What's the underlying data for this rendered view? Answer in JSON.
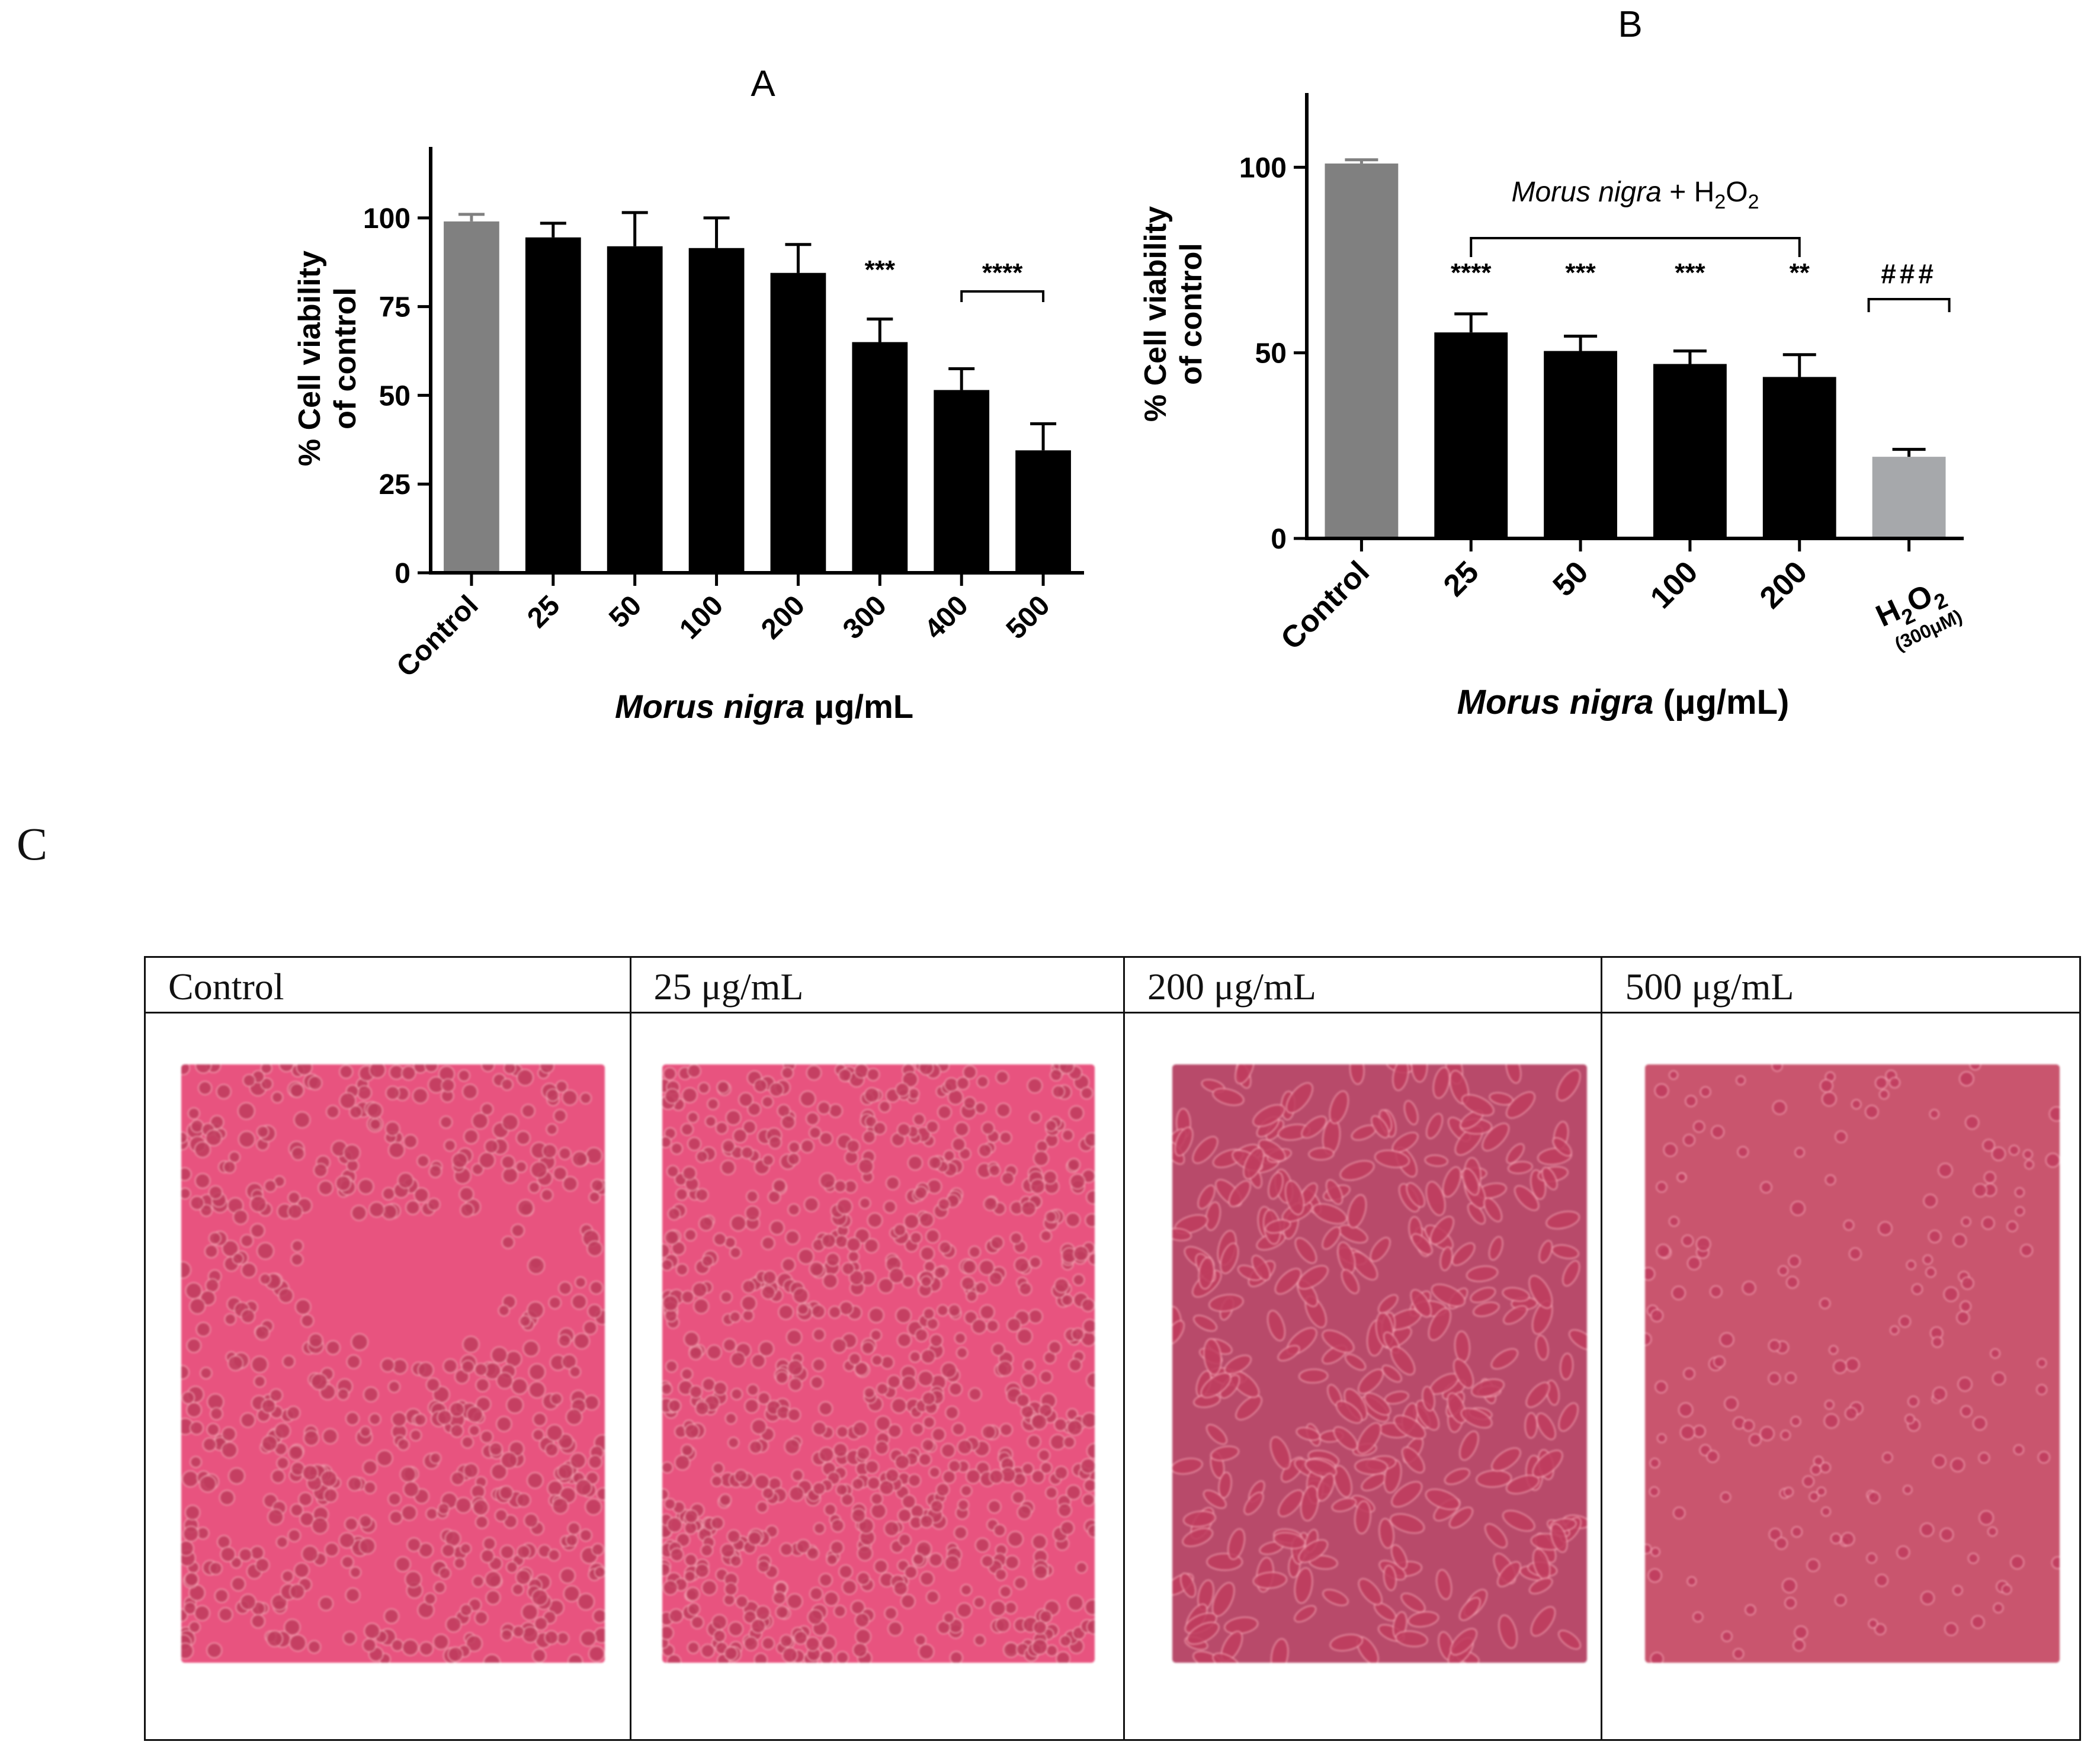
{
  "chart_data": [
    {
      "panel": "A",
      "type": "bar",
      "title": "A",
      "ylabel_lines": [
        "% Cell viability",
        "of control"
      ],
      "xlabel_italic": "Morus nigra",
      "xlabel_rest": " μg/mL",
      "categories": [
        "Control",
        "25",
        "50",
        "100",
        "200",
        "300",
        "400",
        "500"
      ],
      "values": [
        99,
        94.5,
        92,
        91.5,
        84.5,
        65,
        51.5,
        34.5
      ],
      "errors": [
        2,
        4,
        9.5,
        8.5,
        8,
        6.5,
        6,
        7.5
      ],
      "bar_colors": [
        "#808080",
        "#000000",
        "#000000",
        "#000000",
        "#000000",
        "#000000",
        "#000000",
        "#000000"
      ],
      "ylim": [
        0,
        120
      ],
      "yticks": [
        "0",
        "25",
        "50",
        "75",
        "100"
      ],
      "annotations": [
        {
          "text": "***",
          "over": [
            5,
            5
          ],
          "bracket": false
        },
        {
          "text": "****",
          "over": [
            6,
            7
          ],
          "bracket": true
        }
      ]
    },
    {
      "panel": "B",
      "type": "bar",
      "title": "B",
      "ylabel_lines": [
        "% Cell viability",
        "of control"
      ],
      "xlabel_italic": "Morus nigra",
      "xlabel_rest": " (μg/mL)",
      "categories": [
        "Control",
        "25",
        "50",
        "100",
        "200",
        "H2O2 (300μM)"
      ],
      "values": [
        101,
        55.5,
        50.5,
        47,
        43.5,
        22
      ],
      "errors": [
        1,
        5,
        4,
        3.5,
        6,
        2
      ],
      "bar_colors": [
        "#808080",
        "#000000",
        "#000000",
        "#000000",
        "#000000",
        "#a6a8ab"
      ],
      "ylim": [
        0,
        120
      ],
      "yticks": [
        "0",
        "50",
        "100"
      ],
      "bracket_label_italic": "Morus nigra",
      "bracket_label_rest": " + H",
      "bracket_label_sub1": "2",
      "bracket_label_mid": "O",
      "bracket_label_sub2": "2",
      "star_labels": [
        "****",
        "***",
        "***",
        "**"
      ],
      "hash_label": "###",
      "h2o2_main": "H",
      "h2o2_sub1": "2",
      "h2o2_mid": "O",
      "h2o2_sub2": "2",
      "h2o2_conc": "(300μM)"
    }
  ],
  "panel_c": {
    "letter": "C",
    "columns": [
      {
        "label": "Control",
        "density": "high",
        "shape": "round"
      },
      {
        "label": "25 μg/mL",
        "density": "very-high",
        "shape": "round"
      },
      {
        "label": "200 μg/mL",
        "density": "medium",
        "shape": "spindle"
      },
      {
        "label": "500 μg/mL",
        "density": "sparse",
        "shape": "clump"
      }
    ],
    "colors": {
      "bg1": "#e8537f",
      "bg2": "#d0507a",
      "bg3": "#b84a6a",
      "bg4": "#c9556e",
      "cell": "#c03c5e",
      "rim": "#f2a0b0"
    }
  }
}
